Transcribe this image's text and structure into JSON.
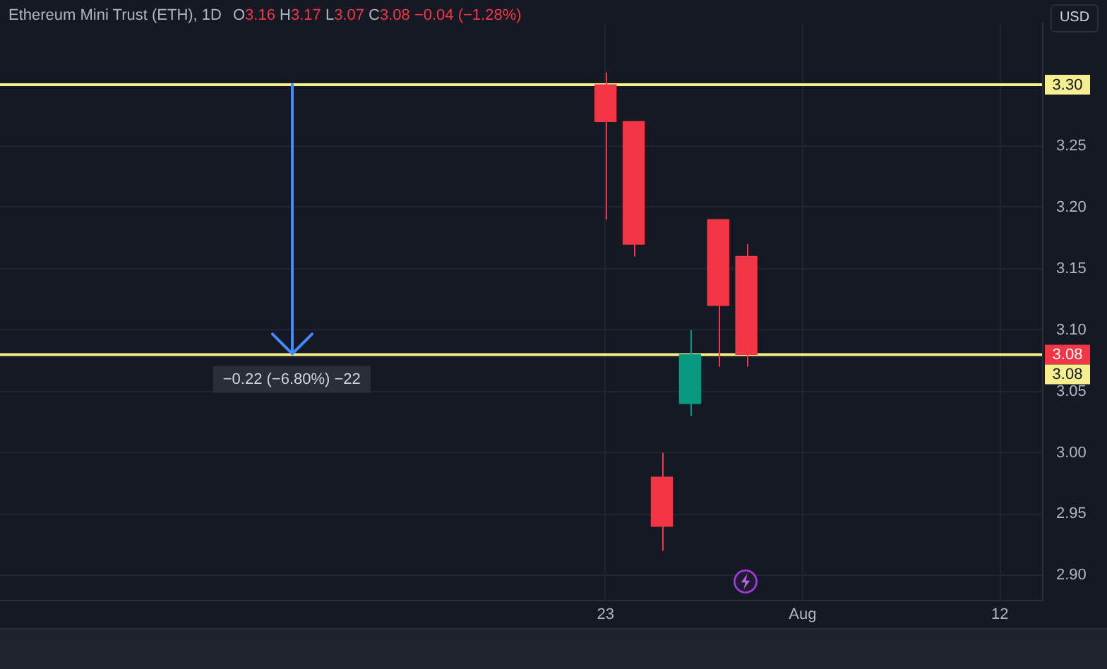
{
  "chart_data": {
    "type": "candlestick",
    "title": "Ethereum Mini Trust (ETH), 1D",
    "subtitle": "O3.16 H3.17 L3.07 C3.08 −0.04 (−1.28%)",
    "ylabel": "USD",
    "categories": [
      null,
      null,
      null,
      null,
      null,
      null,
      null,
      null,
      null,
      null,
      null,
      null,
      null,
      null,
      null,
      null,
      null,
      null,
      null,
      null,
      null,
      "23",
      null,
      null,
      null,
      null,
      null,
      null,
      "Aug",
      null,
      null,
      null,
      null,
      null,
      null,
      "12",
      null
    ],
    "ohlc": [
      null,
      null,
      null,
      null,
      null,
      null,
      null,
      null,
      null,
      null,
      null,
      null,
      null,
      null,
      null,
      null,
      null,
      null,
      null,
      null,
      null,
      [
        3.3,
        3.31,
        3.19,
        3.27
      ],
      [
        3.27,
        3.27,
        3.16,
        3.17
      ],
      [
        2.98,
        3.0,
        2.92,
        2.94
      ],
      [
        3.04,
        3.1,
        3.03,
        3.08
      ],
      [
        3.19,
        3.19,
        3.07,
        3.12
      ],
      [
        3.16,
        3.17,
        3.07,
        3.08
      ],
      null,
      null,
      null,
      null,
      null,
      null,
      null,
      null,
      null,
      null
    ],
    "colors": [
      null,
      null,
      null,
      null,
      null,
      null,
      null,
      null,
      null,
      null,
      null,
      null,
      null,
      null,
      null,
      null,
      null,
      null,
      null,
      null,
      null,
      "#f23645",
      "#f23645",
      "#f23645",
      "#089981",
      "#f23645",
      "#f23645",
      null,
      null,
      null,
      null,
      null,
      null,
      null,
      null,
      null,
      null
    ],
    "ylim": [
      2.88,
      3.35
    ],
    "yticks": [
      {
        "value": 2.9,
        "label": "2.90"
      },
      2.95,
      {
        "value": 3.0,
        "label": "3.00"
      },
      3.05,
      {
        "value": 3.1,
        "label": "3.10"
      },
      3.15,
      {
        "value": 3.2,
        "label": "3.20"
      },
      3.25
    ],
    "grid": true,
    "ref_lines": [
      {
        "axis": "y",
        "value": 3.3,
        "label": "3.30",
        "color": "#f5ef8f"
      },
      {
        "axis": "y",
        "value": 3.08,
        "label": "3.08",
        "color": "#f5ef8f"
      }
    ],
    "annotations": [
      {
        "text": "−0.22 (−6.80%) −22",
        "y": 3.08
      },
      "3.08"
    ]
  }
}
